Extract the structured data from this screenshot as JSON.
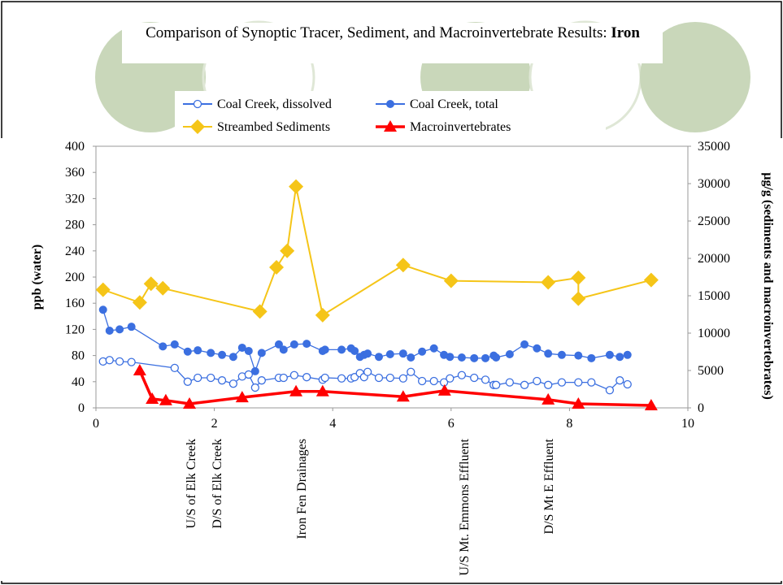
{
  "chart_data": {
    "type": "line",
    "title": "Comparison of Synoptic Tracer, Sediment, and Macroinvertebrate Results:",
    "title_emphasis": "Iron",
    "ylabel": "ppb (water)",
    "y2label": "µg/g (sediments and macroinvertebrates)",
    "xlim": [
      0,
      10
    ],
    "xticks": [
      0,
      2,
      4,
      6,
      8,
      10
    ],
    "ylim": [
      0,
      400
    ],
    "yticks": [
      0,
      40,
      80,
      120,
      160,
      200,
      240,
      280,
      320,
      360,
      400
    ],
    "y2lim": [
      0,
      35000
    ],
    "y2ticks": [
      0,
      5000,
      10000,
      15000,
      20000,
      25000,
      30000,
      35000
    ],
    "legend": "top",
    "annotations": [
      "U/S of Elk Creek",
      "D/S of Elk Creek",
      "Iron Fen Drainages",
      "U/S Mt. Emmons Effluent",
      "D/S Mt E Effluent"
    ],
    "series": [
      {
        "name": "Coal Creek, dissolved",
        "color": "#3b6fe0",
        "marker": "open-circle",
        "x": [
          0.12,
          0.23,
          0.4,
          0.6,
          1.33,
          1.55,
          1.72,
          1.94,
          2.13,
          2.32,
          2.47,
          2.58,
          2.69,
          2.8,
          3.09,
          3.17,
          3.35,
          3.56,
          3.83,
          3.87,
          4.15,
          4.31,
          4.37,
          4.46,
          4.53,
          4.59,
          4.78,
          4.97,
          5.19,
          5.32,
          5.51,
          5.71,
          5.88,
          5.98,
          6.18,
          6.39,
          6.58,
          6.72,
          6.76,
          6.99,
          7.24,
          7.45,
          7.64,
          7.87,
          8.15,
          8.37,
          8.68,
          8.85,
          8.98
        ],
        "values": [
          71,
          73,
          71,
          70,
          61,
          40,
          46,
          46,
          42,
          37,
          48,
          51,
          31,
          42,
          46,
          46,
          50,
          47,
          43,
          46,
          45,
          45,
          47,
          53,
          47,
          55,
          46,
          46,
          45,
          55,
          41,
          41,
          39,
          45,
          50,
          46,
          43,
          35,
          35,
          39,
          35,
          41,
          35,
          39,
          39,
          39,
          27,
          42,
          36
        ]
      },
      {
        "name": "Coal Creek, total",
        "color": "#3b6fe0",
        "marker": "circle",
        "x": [
          0.12,
          0.23,
          0.4,
          0.6,
          1.13,
          1.33,
          1.55,
          1.72,
          1.94,
          2.13,
          2.32,
          2.47,
          2.58,
          2.69,
          2.8,
          3.09,
          3.17,
          3.35,
          3.56,
          3.83,
          3.87,
          4.15,
          4.31,
          4.37,
          4.46,
          4.53,
          4.59,
          4.78,
          4.97,
          5.19,
          5.32,
          5.51,
          5.71,
          5.88,
          5.98,
          6.18,
          6.39,
          6.58,
          6.72,
          6.76,
          6.99,
          7.24,
          7.45,
          7.64,
          7.87,
          8.15,
          8.37,
          8.68,
          8.85,
          8.98
        ],
        "values": [
          150,
          118,
          120,
          124,
          94,
          97,
          86,
          88,
          84,
          81,
          78,
          92,
          87,
          56,
          84,
          97,
          89,
          97,
          98,
          87,
          89,
          89,
          91,
          87,
          78,
          81,
          83,
          78,
          82,
          83,
          77,
          86,
          91,
          81,
          78,
          77,
          76,
          76,
          80,
          77,
          82,
          97,
          91,
          83,
          81,
          80,
          76,
          81,
          78,
          81
        ]
      },
      {
        "name": "Streambed Sediments",
        "color": "#f5c518",
        "marker": "diamond",
        "axis": "y2",
        "x": [
          0.12,
          0.74,
          0.93,
          1.13,
          2.77,
          3.05,
          3.23,
          3.38,
          3.83,
          5.19,
          6.0,
          7.64,
          8.15,
          8.15,
          9.38
        ],
        "values": [
          15800,
          14100,
          16600,
          16000,
          12900,
          18800,
          21000,
          29600,
          12400,
          19100,
          17000,
          16800,
          17400,
          14600,
          17100
        ]
      },
      {
        "name": "Macroinvertebrates",
        "color": "#ff0000",
        "marker": "triangle",
        "axis": "y2",
        "x": [
          0.74,
          0.95,
          1.18,
          1.58,
          2.47,
          3.38,
          3.83,
          5.19,
          5.89,
          7.64,
          8.15,
          9.38
        ],
        "values": [
          5000,
          1200,
          1000,
          540,
          1400,
          2200,
          2200,
          1500,
          2300,
          1100,
          540,
          330
        ]
      }
    ]
  }
}
